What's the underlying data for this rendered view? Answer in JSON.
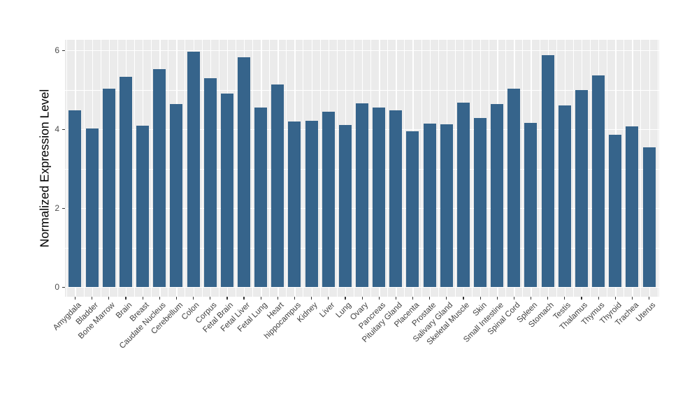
{
  "chart_data": {
    "type": "bar",
    "title": "",
    "xlabel": "",
    "ylabel": "Normalized Expression Level",
    "categories": [
      "Amygdala",
      "Bladder",
      "Bone Marrow",
      "Brain",
      "Breast",
      "Caudate Nucleus",
      "Cerebellum",
      "Colon",
      "Corpus",
      "Fetal Brain",
      "Fetal Liver",
      "Fetal Lung",
      "Heart",
      "hippocampus",
      "Kidney",
      "Liver",
      "Lung",
      "Ovary",
      "Pancreas",
      "Pituitary Gland",
      "Placenta",
      "Prostate",
      "Salivary Gland",
      "Skeletal Muscle",
      "Skin",
      "Small Intestine",
      "Spinal Cord",
      "Spleen",
      "Stomach",
      "Testis",
      "Thalamus",
      "Thymus",
      "Thyroid",
      "Trachea",
      "Uterus"
    ],
    "values": [
      4.48,
      4.01,
      5.02,
      5.32,
      4.08,
      5.52,
      4.64,
      5.96,
      5.3,
      4.9,
      5.82,
      4.54,
      5.13,
      4.19,
      4.21,
      4.44,
      4.1,
      4.65,
      4.54,
      4.48,
      3.94,
      4.15,
      4.12,
      4.68,
      4.29,
      4.64,
      5.02,
      4.16,
      5.88,
      4.61,
      5.0,
      5.36,
      3.85,
      4.07,
      3.54
    ],
    "ylim": [
      0,
      6.25
    ],
    "yticks_major": [
      0,
      2,
      4,
      6
    ],
    "yticks_minor": [
      1,
      3,
      5
    ],
    "ytick_labels": [
      "0",
      "2",
      "4",
      "6"
    ],
    "grid": "on",
    "legend": "none",
    "colors": {
      "bar": "#36648B",
      "panel_background": "#EBEBEB",
      "grid": "#FFFFFF",
      "axis_text": "#4D4D4D",
      "axis_title": "#000000",
      "tick_mark": "#333333"
    }
  }
}
